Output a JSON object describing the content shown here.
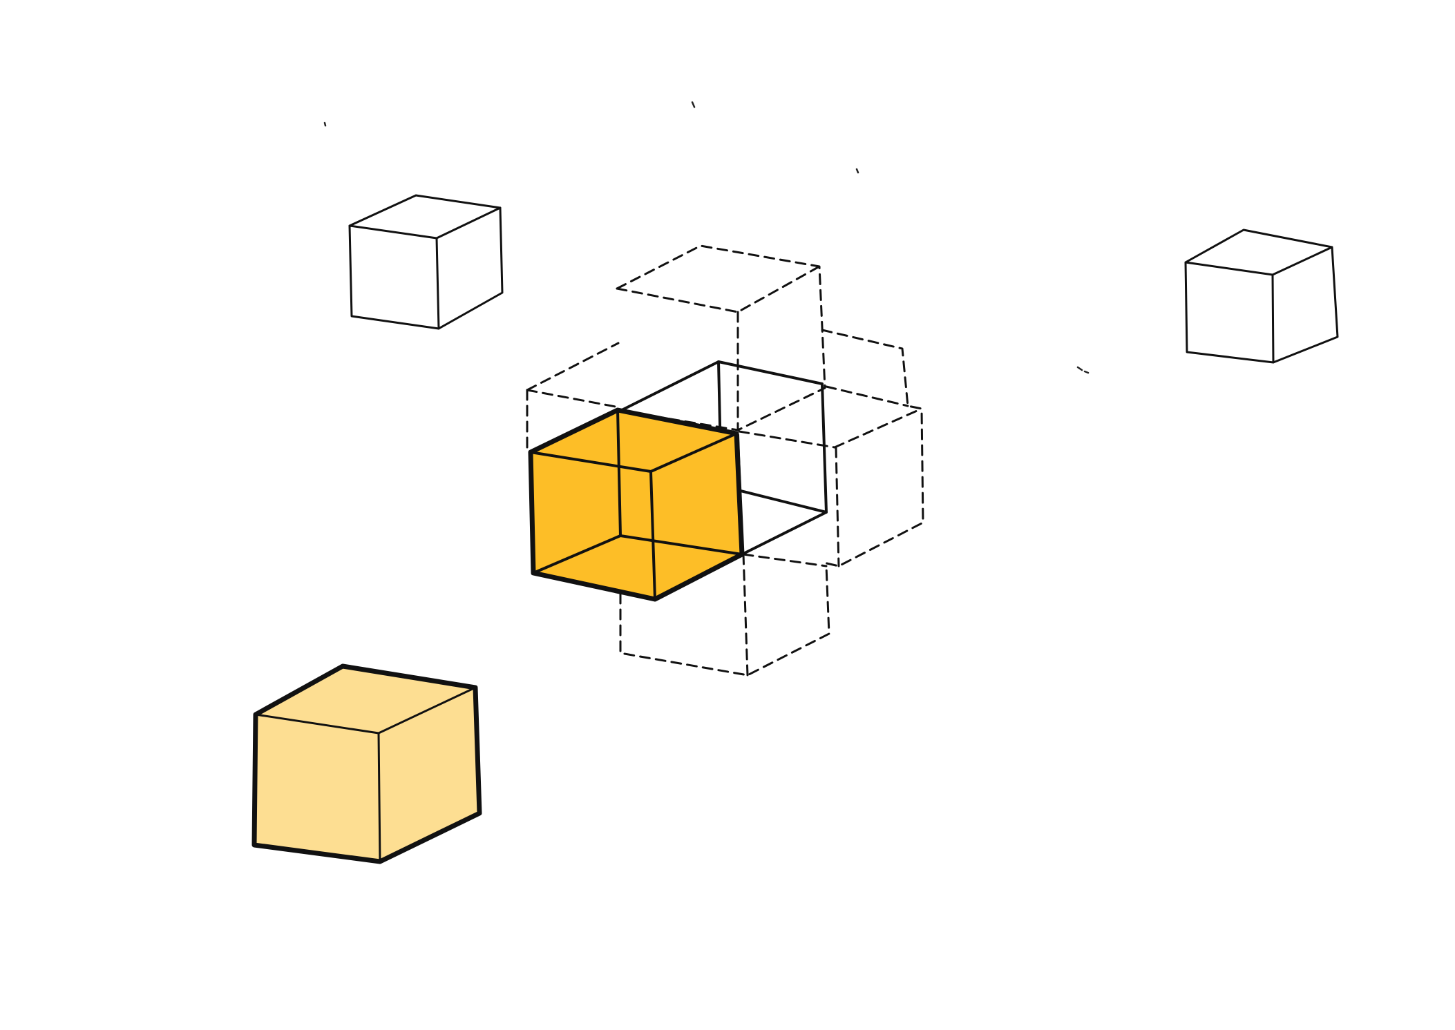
{
  "diagram": {
    "colors": {
      "background": "#ffffff",
      "outline": "#111111",
      "highlight_fill": "#FDBE27",
      "pale_fill": "#FDDE92",
      "plain_fill": "#ffffff"
    },
    "shapes": [
      {
        "name": "white-cube-upper-left",
        "style": "solid outline",
        "fill": "white"
      },
      {
        "name": "white-cube-right",
        "style": "solid outline",
        "fill": "white"
      },
      {
        "name": "dashed-cube-cluster",
        "style": "dashed outline",
        "fill": "none"
      },
      {
        "name": "hollow-cube-center",
        "style": "solid outline",
        "fill": "none"
      },
      {
        "name": "highlighted-cube",
        "style": "bold outline",
        "fill": "orange"
      },
      {
        "name": "pale-cube-lower-left",
        "style": "bold outline",
        "fill": "pale yellow"
      }
    ]
  }
}
